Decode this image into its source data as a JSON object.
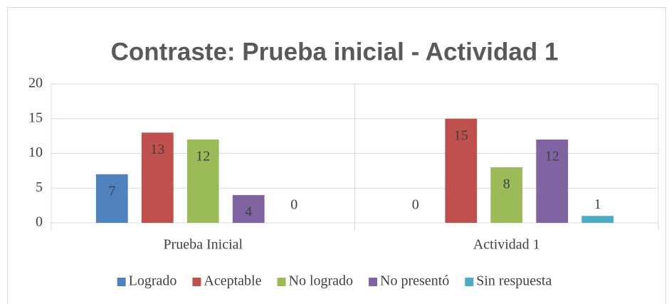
{
  "chart_data": {
    "type": "bar",
    "title": "Contraste: Prueba inicial - Actividad 1",
    "categories": [
      "Prueba Inicial",
      "Actividad 1"
    ],
    "series": [
      {
        "name": "Logrado",
        "color": "#4f81bd",
        "values": [
          7,
          0
        ]
      },
      {
        "name": "Aceptable",
        "color": "#c0504d",
        "values": [
          13,
          15
        ]
      },
      {
        "name": "No logrado",
        "color": "#9bbb59",
        "values": [
          12,
          8
        ]
      },
      {
        "name": "No presentó",
        "color": "#8064a2",
        "values": [
          4,
          12
        ]
      },
      {
        "name": "Sin respuesta",
        "color": "#4bacc6",
        "values": [
          0,
          1
        ]
      }
    ],
    "ylim": [
      0,
      20
    ],
    "yticks": [
      0,
      5,
      10,
      15,
      20
    ],
    "grid": true,
    "legend": "bottom"
  }
}
